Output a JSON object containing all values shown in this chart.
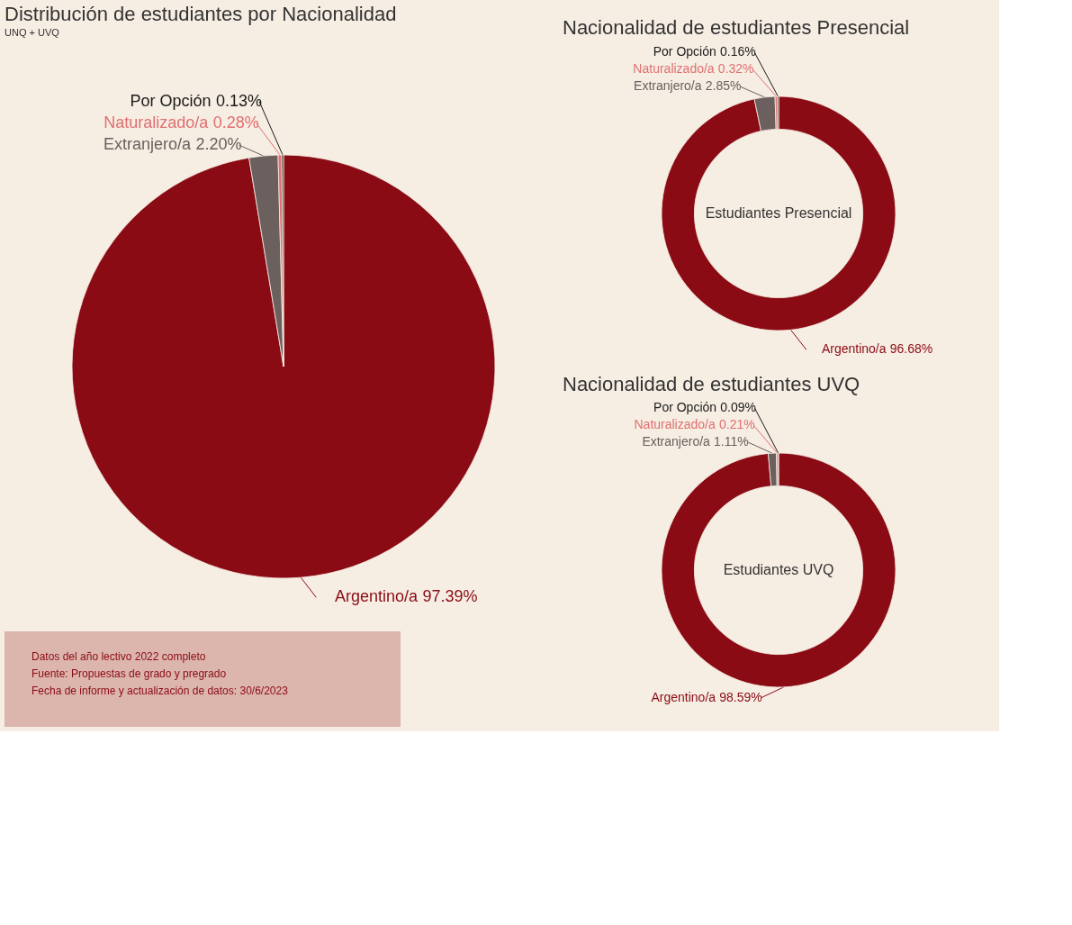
{
  "chart_data": [
    {
      "type": "pie",
      "title": "Distribución de estudiantes por Nacionalidad",
      "subtitle": "UNQ + UVQ",
      "categories": [
        "Argentino/a",
        "Extranjero/a",
        "Naturalizado/a",
        "Por Opción"
      ],
      "values": [
        97.39,
        2.2,
        0.28,
        0.13
      ],
      "colors": [
        "#8b0b14",
        "#6b605e",
        "#e07070",
        "#1a1a1a"
      ],
      "value_labels": [
        "97.39%",
        "2.20%",
        "0.28%",
        "0.13%"
      ],
      "annotations": [
        "Datos del año lectivo 2022 completo",
        "Fuente: Propuestas de grado y pregrado",
        "Fecha de informe y actualización de datos: 30/6/2023"
      ]
    },
    {
      "type": "donut",
      "title": "Nacionalidad de estudiantes Presencial",
      "categories": [
        "Argentino/a",
        "Extranjero/a",
        "Naturalizado/a",
        "Por Opción"
      ],
      "values": [
        96.68,
        2.85,
        0.32,
        0.16
      ],
      "colors": [
        "#8b0b14",
        "#6b605e",
        "#e07070",
        "#1a1a1a"
      ],
      "value_labels": [
        "96.68%",
        "2.85%",
        "0.32%",
        "0.16%"
      ],
      "annotations": [
        "Estudiantes Presencial"
      ]
    },
    {
      "type": "donut",
      "title": "Nacionalidad de estudiantes UVQ",
      "categories": [
        "Argentino/a",
        "Extranjero/a",
        "Naturalizado/a",
        "Por Opción"
      ],
      "values": [
        98.59,
        1.11,
        0.21,
        0.09
      ],
      "colors": [
        "#8b0b14",
        "#6b605e",
        "#e07070",
        "#1a1a1a"
      ],
      "value_labels": [
        "98.59%",
        "1.11%",
        "0.21%",
        "0.09%"
      ],
      "annotations": [
        "Estudiantes UVQ"
      ]
    }
  ]
}
